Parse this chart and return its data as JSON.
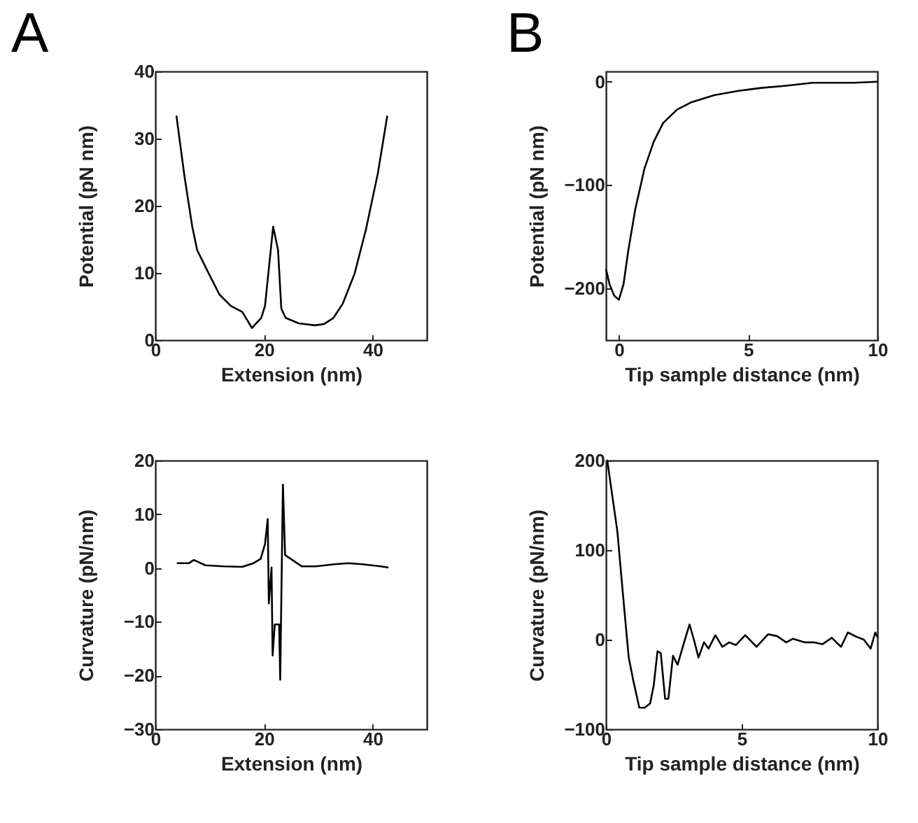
{
  "chart_data": [
    {
      "type": "line",
      "title": "A",
      "xlabel": "Extension (nm)",
      "ylabel": "Potential (pN nm)",
      "xlim": [
        0,
        50
      ],
      "xticks": [
        0,
        20,
        40
      ],
      "ylim": [
        0,
        40
      ],
      "yticks": [
        0,
        10,
        20,
        30,
        40
      ],
      "grid": false,
      "series": [
        {
          "color": "#000000",
          "x": [
            3.9,
            5.4,
            6.8,
            7.7,
            9.6,
            11.8,
            13.9,
            16,
            17.8,
            19.5,
            20.2,
            21.7,
            22.6,
            23.2,
            24,
            26.4,
            29.4,
            31.1,
            32.8,
            34.5,
            36.7,
            38.8,
            41,
            42.7
          ],
          "values": [
            33.3,
            24.2,
            16.9,
            13.4,
            10.3,
            6.8,
            5.1,
            4.2,
            1.8,
            3.3,
            5.1,
            16.9,
            13.4,
            4.7,
            3.3,
            2.5,
            2.2,
            2.4,
            3.3,
            5.4,
            9.9,
            16.5,
            24.9,
            33.3
          ]
        }
      ]
    },
    {
      "type": "line",
      "title": "B",
      "xlabel": "Tip sample distance (nm)",
      "ylabel": "Potential (pN nm)",
      "xlim": [
        -0.5,
        10
      ],
      "xticks": [
        0,
        5,
        10
      ],
      "ylim": [
        -250,
        10
      ],
      "yticks": [
        -200,
        -100,
        0
      ],
      "grid": false,
      "series": [
        {
          "color": "#000000",
          "x": [
            -0.49,
            -0.36,
            -0.18,
            0,
            0.18,
            0.36,
            0.63,
            0.99,
            1.35,
            1.71,
            2.25,
            2.79,
            3.69,
            4.59,
            5.5,
            6.4,
            7.5,
            8.2,
            9.1,
            10
          ],
          "values": [
            -182,
            -196,
            -207,
            -211,
            -196,
            -164,
            -124,
            -84,
            -58,
            -40,
            -27,
            -20,
            -13,
            -9,
            -6,
            -4,
            -1,
            -1,
            -1,
            0
          ]
        }
      ]
    },
    {
      "type": "line",
      "xlabel": "Extension (nm)",
      "ylabel": "Curvature (pN/nm)",
      "xlim": [
        0,
        50
      ],
      "xticks": [
        0,
        20,
        40
      ],
      "ylim": [
        -30,
        20
      ],
      "yticks": [
        -30,
        -20,
        -10,
        0,
        10,
        20
      ],
      "grid": false,
      "series": [
        {
          "color": "#000000",
          "x": [
            4.1,
            6.2,
            7.1,
            9.2,
            12.6,
            16,
            18.1,
            19.4,
            20.2,
            20.7,
            20.9,
            21.4,
            21.6,
            22,
            22.8,
            23,
            23.5,
            23.9,
            25.8,
            27,
            29.6,
            33,
            35.5,
            38.1,
            41.5,
            42.8
          ],
          "values": [
            0.9,
            0.9,
            1.5,
            0.5,
            0.3,
            0.2,
            0.9,
            1.7,
            4.5,
            9.1,
            -6.6,
            0.1,
            -16.3,
            -10.5,
            -10.5,
            -20.8,
            15.5,
            2.4,
            1.1,
            0.3,
            0.3,
            0.7,
            0.9,
            0.7,
            0.3,
            0.1
          ]
        }
      ]
    },
    {
      "type": "line",
      "xlabel": "Tip sample distance (nm)",
      "ylabel": "Curvature (pN/nm)",
      "xlim": [
        0,
        10
      ],
      "xticks": [
        0,
        5,
        10
      ],
      "ylim": [
        -100,
        200
      ],
      "yticks": [
        -100,
        0,
        100,
        200
      ],
      "grid": false,
      "series": [
        {
          "color": "#000000",
          "x": [
            0.05,
            0.42,
            0.67,
            0.84,
            1.01,
            1.23,
            1.43,
            1.63,
            1.76,
            1.9,
            2.02,
            2.18,
            2.3,
            2.47,
            2.64,
            2.86,
            3.08,
            3.24,
            3.41,
            3.61,
            3.78,
            4.03,
            4.29,
            4.54,
            4.79,
            5.13,
            5.55,
            5.97,
            6.3,
            6.64,
            6.89,
            7.31,
            7.65,
            7.98,
            8.32,
            8.66,
            8.91,
            9.24,
            9.5,
            9.75,
            9.92,
            10
          ],
          "values": [
            200,
            121,
            36,
            -20,
            -46,
            -76,
            -76,
            -71,
            -51,
            -13,
            -15,
            -66,
            -66,
            -18,
            -28,
            -5,
            17,
            0,
            -20,
            -3,
            -10,
            5,
            -8,
            -3,
            -6,
            5,
            -8,
            6,
            4,
            -3,
            1,
            -3,
            -3,
            -5,
            2,
            -8,
            8,
            3,
            0,
            -10,
            8,
            3
          ]
        }
      ]
    }
  ]
}
